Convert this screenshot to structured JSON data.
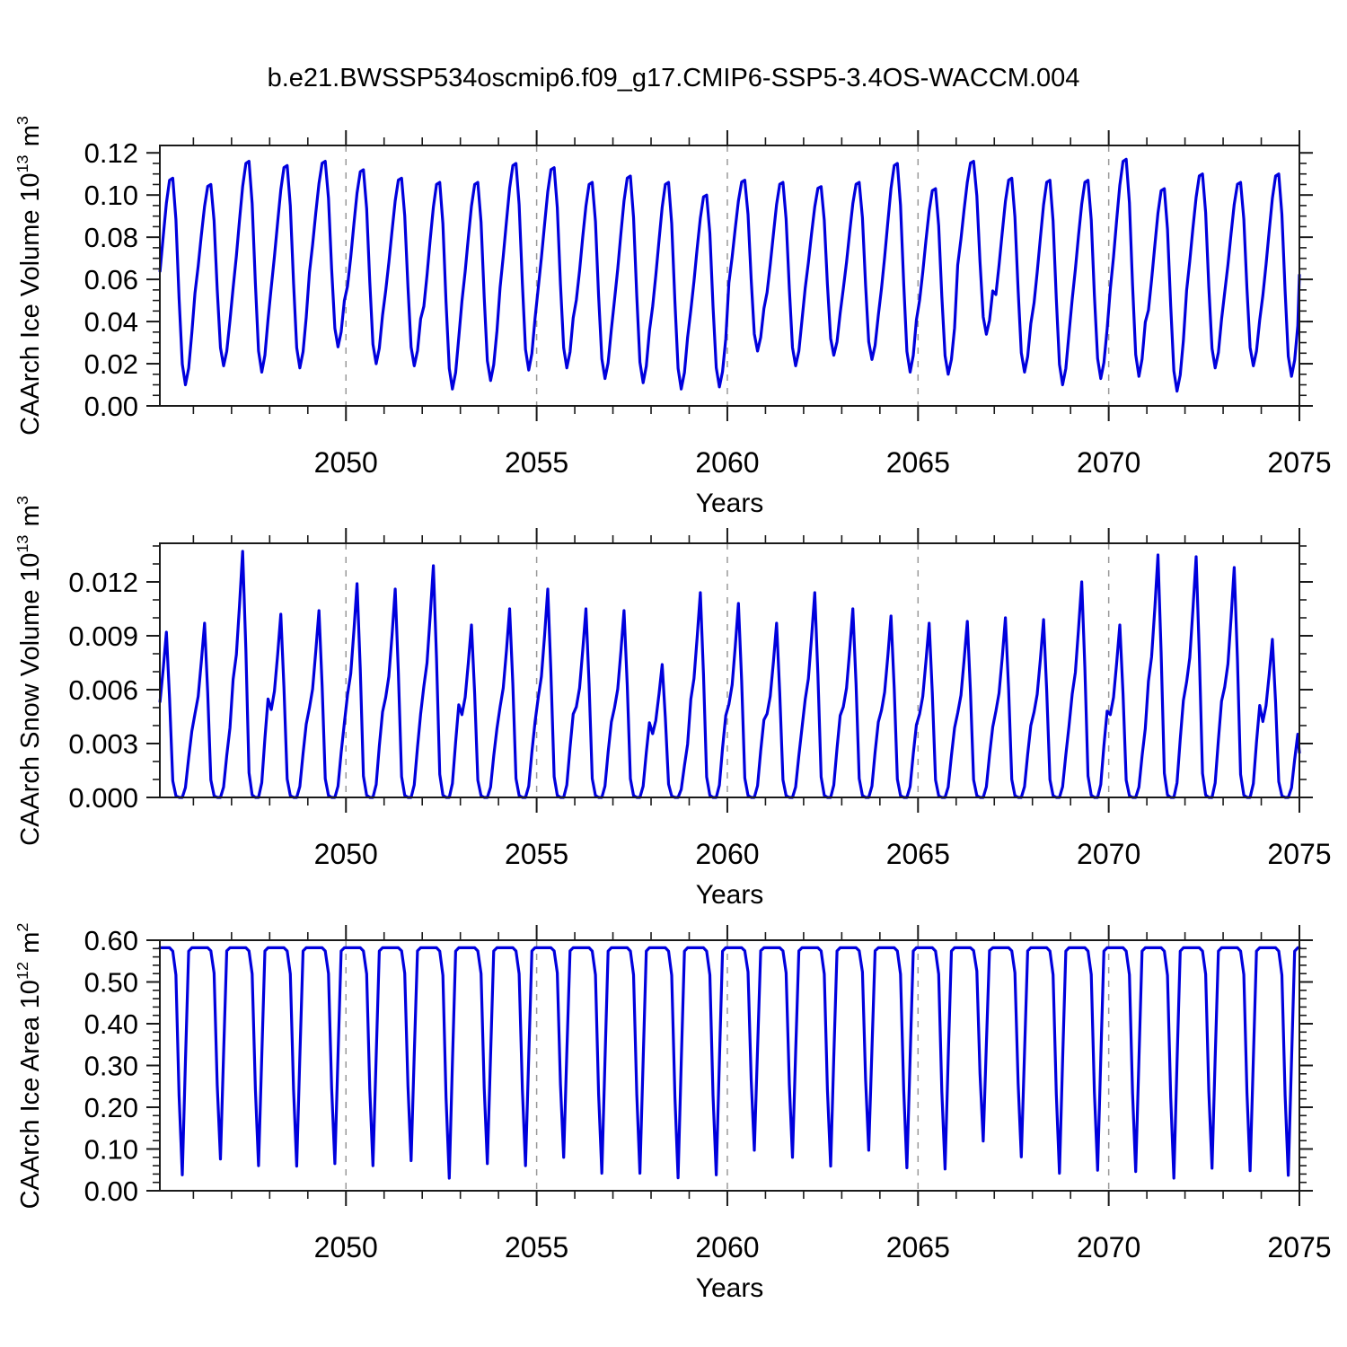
{
  "chart_data": {
    "type": "line",
    "title": "b.e21.BWSSP534oscmip6.f09_g17.CMIP6-SSP5-3.4OS-WACCM.004",
    "colors": {
      "line": "#0000DD",
      "grid": "#999999",
      "frame": "#1A1A1A",
      "text": "#000000",
      "background": "#FFFFFF"
    },
    "x_axis": {
      "label": "Years",
      "min": 2045.12,
      "max": 2075.0,
      "major_ticks": [
        2050,
        2055,
        2060,
        2065,
        2070,
        2075
      ],
      "tick_labels": [
        "2050",
        "2055",
        "2060",
        "2065",
        "2070",
        "2075"
      ],
      "minor_step_years": 1,
      "gridline_ticks": [
        2050,
        2055,
        2060,
        2065,
        2070
      ],
      "gridline_style": "dashed"
    },
    "years": [
      2045,
      2046,
      2047,
      2048,
      2049,
      2050,
      2051,
      2052,
      2053,
      2054,
      2055,
      2056,
      2057,
      2058,
      2059,
      2060,
      2061,
      2062,
      2063,
      2064,
      2065,
      2066,
      2067,
      2068,
      2069,
      2070,
      2071,
      2072,
      2073,
      2074
    ],
    "sampling": "monthly",
    "panels": [
      {
        "id": "ice-volume",
        "ylabel": {
          "text": "CAArch Ice Volume",
          "power_base": "10",
          "power_exp": "13",
          "unit": "m",
          "unit_exp": "3"
        },
        "y_axis": {
          "min": 0,
          "max": 0.1235,
          "major_step": 0.02,
          "minor_step": 0.005,
          "decimals": 2,
          "tick_labels": [
            "0.00",
            "0.02",
            "0.04",
            "0.06",
            "0.08",
            "0.10",
            "0.12"
          ]
        },
        "series_model": {
          "kind": "min_max_cycle",
          "month_fractions": [
            0.4,
            0.55,
            0.72,
            0.88,
            0.99,
            1.0,
            0.8,
            0.42,
            0.1,
            0.0,
            0.08,
            0.25
          ],
          "peak_month": "June",
          "trough_month": "October",
          "end_value": 0.062
        },
        "year_max": [
          0.108,
          0.105,
          0.116,
          0.114,
          0.116,
          0.112,
          0.108,
          0.106,
          0.106,
          0.115,
          0.113,
          0.106,
          0.109,
          0.106,
          0.1,
          0.107,
          0.106,
          0.104,
          0.106,
          0.115,
          0.103,
          0.116,
          0.108,
          0.107,
          0.107,
          0.117,
          0.103,
          0.11,
          0.106,
          0.11
        ],
        "year_min": [
          0.01,
          0.019,
          0.016,
          0.018,
          0.028,
          0.02,
          0.019,
          0.008,
          0.012,
          0.017,
          0.018,
          0.013,
          0.011,
          0.008,
          0.009,
          0.026,
          0.019,
          0.024,
          0.022,
          0.016,
          0.015,
          0.034,
          0.016,
          0.01,
          0.013,
          0.014,
          0.007,
          0.018,
          0.019,
          0.014
        ]
      },
      {
        "id": "snow-volume",
        "ylabel": {
          "text": "CAArch Snow Volume",
          "power_base": "10",
          "power_exp": "13",
          "unit": "m",
          "unit_exp": "3"
        },
        "y_axis": {
          "min": 0,
          "max": 0.01415,
          "major_step": 0.003,
          "minor_step": 0.001,
          "decimals": 3,
          "tick_labels": [
            "0.000",
            "0.003",
            "0.006",
            "0.009",
            "0.012"
          ]
        },
        "series_model": {
          "kind": "scaled_cycle",
          "month_fractions": [
            0.48,
            0.58,
            0.78,
            1.0,
            0.6,
            0.1,
            0.01,
            0.0,
            0.0,
            0.06,
            0.24,
            0.4
          ],
          "peak_month": "April",
          "summer_value": 0.0,
          "end_value": 0.0025
        },
        "year_max": [
          0.0092,
          0.0097,
          0.0137,
          0.0102,
          0.0104,
          0.0119,
          0.0116,
          0.0129,
          0.0096,
          0.0105,
          0.0116,
          0.0105,
          0.0104,
          0.0074,
          0.0114,
          0.0108,
          0.0097,
          0.0114,
          0.0105,
          0.0101,
          0.0097,
          0.0098,
          0.01,
          0.0099,
          0.012,
          0.0096,
          0.0135,
          0.0134,
          0.0128,
          0.0088
        ],
        "year_min_value": 0.0
      },
      {
        "id": "ice-area",
        "ylabel": {
          "text": "CAArch Ice Area",
          "power_base": "10",
          "power_exp": "12",
          "unit": "m",
          "unit_exp": "2"
        },
        "y_axis": {
          "min": 0,
          "max": 0.6,
          "major_step": 0.1,
          "minor_step": 0.02,
          "decimals": 2,
          "tick_labels": [
            "0.00",
            "0.10",
            "0.20",
            "0.30",
            "0.40",
            "0.50",
            "0.60"
          ]
        },
        "series_model": {
          "kind": "plateau_cycle",
          "plateau_value": 0.582,
          "month_fractions": [
            1.0,
            1.0,
            1.0,
            1.0,
            1.0,
            0.985,
            0.88,
            0.35,
            0.0,
            0.5,
            0.985,
            1.0
          ],
          "trough_month": "September",
          "end_value": 0.582
        },
        "year_min": [
          0.038,
          0.076,
          0.06,
          0.059,
          0.065,
          0.06,
          0.072,
          0.03,
          0.065,
          0.06,
          0.08,
          0.042,
          0.042,
          0.031,
          0.038,
          0.097,
          0.08,
          0.059,
          0.097,
          0.055,
          0.052,
          0.119,
          0.081,
          0.042,
          0.049,
          0.046,
          0.03,
          0.054,
          0.048,
          0.037
        ]
      }
    ]
  }
}
